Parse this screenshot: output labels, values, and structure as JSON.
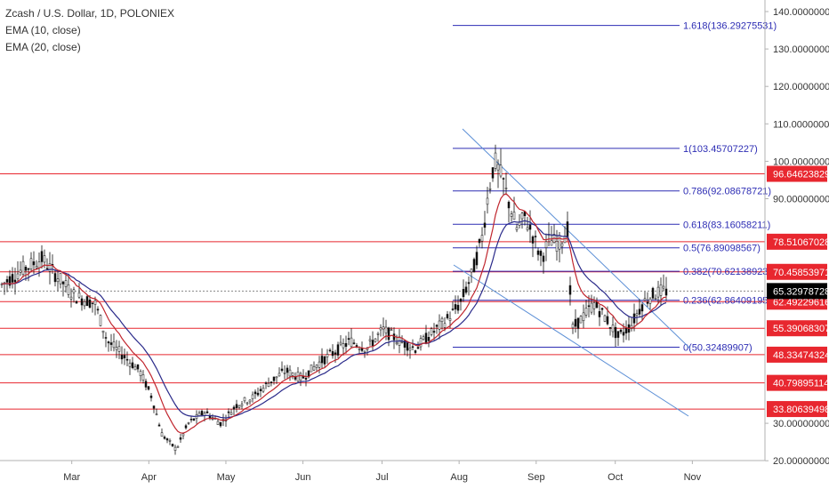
{
  "legend": {
    "title": "Zcash / U.S. Dollar, 1D, POLONIEX",
    "ema10": "EMA (10, close)",
    "ema20": "EMA (20, close)"
  },
  "colors": {
    "horizontal_levels": "#e8272f",
    "fib_levels": "#2d2db4",
    "price_badge": "#000000",
    "channel": "#5b8fd6",
    "ema10": "#c0262e",
    "ema20": "#2a2a8a",
    "candles": "#111111",
    "axis_text": "#333333"
  },
  "chart_data": {
    "type": "candlestick",
    "symbol": "Zcash / U.S. Dollar, 1D, POLONIEX",
    "ylim": [
      10,
      145
    ],
    "y_ticks": [
      "140.00000000",
      "130.00000000",
      "120.00000000",
      "110.00000000",
      "100.00000000",
      "90.00000000",
      "30.00000000",
      "20.00000000"
    ],
    "x_ticks": [
      "Mar",
      "Apr",
      "May",
      "Jun",
      "Jul",
      "Aug",
      "Sep",
      "Oct",
      "Nov"
    ],
    "current_price": "65.32978728",
    "horizontal_levels": [
      {
        "value": 96.64623829,
        "label": "96.64623829"
      },
      {
        "value": 78.51067028,
        "label": "78.51067028"
      },
      {
        "value": 70.45853971,
        "label": "70.45853971"
      },
      {
        "value": 62.49229616,
        "label": "62.49229616"
      },
      {
        "value": 55.39068307,
        "label": "55.39068307"
      },
      {
        "value": 48.33474324,
        "label": "48.33474324"
      },
      {
        "value": 40.79895114,
        "label": "40.79895114"
      },
      {
        "value": 33.80639498,
        "label": "33.80639498"
      }
    ],
    "fib_levels": [
      {
        "value": 136.29275531,
        "label": "1.618(136.29275531)"
      },
      {
        "value": 103.45707227,
        "label": "1(103.45707227)"
      },
      {
        "value": 92.08678721,
        "label": "0.786(92.08678721)"
      },
      {
        "value": 83.16058211,
        "label": "0.618(83.16058211)"
      },
      {
        "value": 76.89098567,
        "label": "0.5(76.89098567)"
      },
      {
        "value": 70.62138923,
        "label": "0.382(70.62138923)"
      },
      {
        "value": 62.86409195,
        "label": "0.236(62.86409195)"
      },
      {
        "value": 50.32489907,
        "label": "0(50.32489907)"
      }
    ],
    "price_path": [
      {
        "x": 0,
        "y": 67
      },
      {
        "x": 0.5,
        "y": 71
      },
      {
        "x": 1,
        "y": 74
      },
      {
        "x": 1.3,
        "y": 70
      },
      {
        "x": 1.8,
        "y": 64
      },
      {
        "x": 2.3,
        "y": 62
      },
      {
        "x": 2.6,
        "y": 52
      },
      {
        "x": 3.0,
        "y": 48
      },
      {
        "x": 3.4,
        "y": 44
      },
      {
        "x": 3.7,
        "y": 37
      },
      {
        "x": 3.95,
        "y": 27
      },
      {
        "x": 4.3,
        "y": 23
      },
      {
        "x": 4.6,
        "y": 30
      },
      {
        "x": 5.0,
        "y": 33
      },
      {
        "x": 5.4,
        "y": 30
      },
      {
        "x": 5.8,
        "y": 35
      },
      {
        "x": 6.2,
        "y": 37
      },
      {
        "x": 6.6,
        "y": 41
      },
      {
        "x": 7.0,
        "y": 44
      },
      {
        "x": 7.4,
        "y": 42
      },
      {
        "x": 7.8,
        "y": 46
      },
      {
        "x": 8.2,
        "y": 49
      },
      {
        "x": 8.6,
        "y": 52
      },
      {
        "x": 9.0,
        "y": 50
      },
      {
        "x": 9.4,
        "y": 55
      },
      {
        "x": 9.8,
        "y": 52
      },
      {
        "x": 10.2,
        "y": 50
      },
      {
        "x": 10.6,
        "y": 54
      },
      {
        "x": 11.0,
        "y": 58
      },
      {
        "x": 11.3,
        "y": 62
      },
      {
        "x": 11.6,
        "y": 70
      },
      {
        "x": 11.85,
        "y": 80
      },
      {
        "x": 12.0,
        "y": 92
      },
      {
        "x": 12.15,
        "y": 100
      },
      {
        "x": 12.35,
        "y": 95
      },
      {
        "x": 12.5,
        "y": 89
      },
      {
        "x": 12.7,
        "y": 82
      },
      {
        "x": 12.9,
        "y": 85
      },
      {
        "x": 13.1,
        "y": 80
      },
      {
        "x": 13.3,
        "y": 74
      },
      {
        "x": 13.5,
        "y": 79
      },
      {
        "x": 13.75,
        "y": 78
      },
      {
        "x": 13.95,
        "y": 82
      },
      {
        "x": 14.05,
        "y": 55
      },
      {
        "x": 14.3,
        "y": 58
      },
      {
        "x": 14.6,
        "y": 62
      },
      {
        "x": 14.9,
        "y": 58
      },
      {
        "x": 15.2,
        "y": 53
      },
      {
        "x": 15.5,
        "y": 56
      },
      {
        "x": 15.8,
        "y": 62
      },
      {
        "x": 16.0,
        "y": 64
      },
      {
        "x": 16.25,
        "y": 65.3
      }
    ]
  }
}
